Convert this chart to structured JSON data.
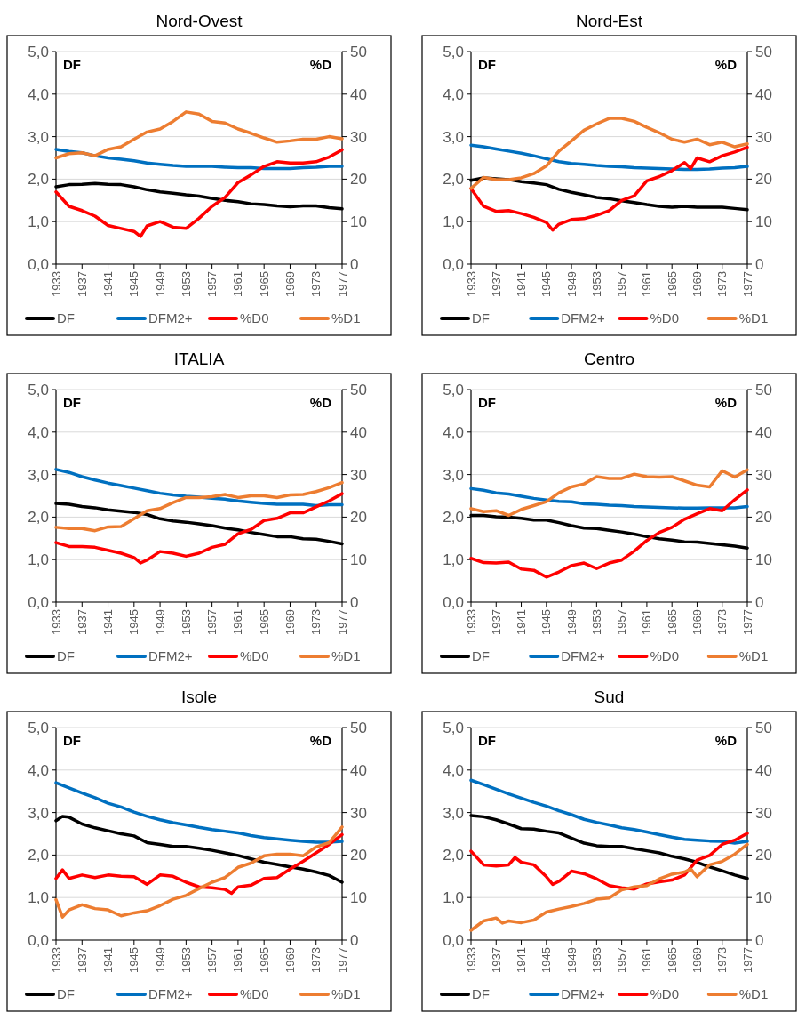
{
  "chart_data": [
    {
      "type": "line",
      "title": "Nord-Ovest",
      "ylabel": "DF",
      "y2label": "%D",
      "x": [
        1933,
        1935,
        1937,
        1939,
        1941,
        1943,
        1945,
        1947,
        1949,
        1951,
        1953,
        1955,
        1957,
        1959,
        1961,
        1963,
        1965,
        1967,
        1969,
        1971,
        1973,
        1975,
        1977
      ],
      "xlim": [
        1933,
        1977
      ],
      "xticks": [
        1933,
        1937,
        1941,
        1945,
        1949,
        1953,
        1957,
        1961,
        1965,
        1969,
        1973,
        1977
      ],
      "ylim": [
        0,
        5
      ],
      "yticks": [
        {
          "value": 0,
          "label": "0,0"
        },
        {
          "value": 1,
          "label": "1,0"
        },
        {
          "value": 2,
          "label": "2,0"
        },
        {
          "value": 3,
          "label": "3,0"
        },
        {
          "value": 4,
          "label": "4,0"
        },
        {
          "value": 5,
          "label": "5,0"
        }
      ],
      "y2lim": [
        0,
        50
      ],
      "y2ticks": [
        0,
        10,
        20,
        30,
        40,
        50
      ],
      "grid": "y",
      "legend": "bottom",
      "series": [
        {
          "name": "DF",
          "color": "#000000",
          "values": [
            1.82,
            1.87,
            1.88,
            1.9,
            1.88,
            1.87,
            1.82,
            1.75,
            1.7,
            1.67,
            1.63,
            1.6,
            1.55,
            1.5,
            1.47,
            1.42,
            1.4,
            1.37,
            1.35,
            1.37,
            1.37,
            1.33,
            1.3
          ]
        },
        {
          "name": "DFM2+",
          "color": "#0070c0",
          "values": [
            2.7,
            2.65,
            2.62,
            2.55,
            2.5,
            2.47,
            2.43,
            2.38,
            2.35,
            2.32,
            2.3,
            2.3,
            2.3,
            2.28,
            2.27,
            2.27,
            2.25,
            2.25,
            2.25,
            2.27,
            2.28,
            2.3,
            2.3
          ]
        },
        {
          "name": "%D0",
          "color": "#ff0000",
          "axis": "y2",
          "x": [
            1933,
            1935,
            1937,
            1939,
            1941,
            1943,
            1945,
            1946,
            1947,
            1949,
            1951,
            1953,
            1955,
            1957,
            1959,
            1961,
            1963,
            1965,
            1967,
            1969,
            1971,
            1973,
            1975,
            1977
          ],
          "values": [
            17,
            13.6,
            12.6,
            11.3,
            9.1,
            8.4,
            7.7,
            6.5,
            9,
            10,
            8.7,
            8.4,
            10.8,
            13.6,
            15.7,
            19.2,
            21,
            23,
            24.1,
            23.8,
            23.8,
            24.1,
            25.2,
            26.9
          ]
        },
        {
          "name": "%D1",
          "color": "#ed7d31",
          "axis": "y2",
          "values": [
            25,
            26,
            26.2,
            25.5,
            27,
            27.6,
            29.4,
            31.1,
            31.8,
            33.6,
            35.8,
            35.3,
            33.6,
            33.2,
            31.8,
            30.8,
            29.7,
            28.7,
            29,
            29.4,
            29.4,
            30,
            29.5
          ]
        }
      ]
    },
    {
      "type": "line",
      "title": "Nord-Est",
      "ylabel": "DF",
      "y2label": "%D",
      "x": [
        1933,
        1935,
        1937,
        1939,
        1941,
        1943,
        1945,
        1947,
        1949,
        1951,
        1953,
        1955,
        1957,
        1959,
        1961,
        1963,
        1965,
        1967,
        1969,
        1971,
        1973,
        1975,
        1977
      ],
      "xlim": [
        1933,
        1977
      ],
      "xticks": [
        1933,
        1937,
        1941,
        1945,
        1949,
        1953,
        1957,
        1961,
        1965,
        1969,
        1973,
        1977
      ],
      "ylim": [
        0,
        5
      ],
      "yticks": [
        {
          "value": 0,
          "label": "0,0"
        },
        {
          "value": 1,
          "label": "1,0"
        },
        {
          "value": 2,
          "label": "2,0"
        },
        {
          "value": 3,
          "label": "3,0"
        },
        {
          "value": 4,
          "label": "4,0"
        },
        {
          "value": 5,
          "label": "5,0"
        }
      ],
      "y2lim": [
        0,
        50
      ],
      "y2ticks": [
        0,
        10,
        20,
        30,
        40,
        50
      ],
      "grid": "y",
      "legend": "bottom",
      "series": [
        {
          "name": "DF",
          "color": "#000000",
          "values": [
            1.97,
            2.03,
            2.01,
            1.99,
            1.94,
            1.91,
            1.87,
            1.76,
            1.69,
            1.63,
            1.57,
            1.54,
            1.49,
            1.45,
            1.4,
            1.36,
            1.34,
            1.36,
            1.34,
            1.34,
            1.34,
            1.31,
            1.28
          ]
        },
        {
          "name": "DFM2+",
          "color": "#0070c0",
          "values": [
            2.8,
            2.76,
            2.71,
            2.66,
            2.61,
            2.55,
            2.48,
            2.41,
            2.37,
            2.35,
            2.32,
            2.3,
            2.29,
            2.27,
            2.26,
            2.25,
            2.24,
            2.23,
            2.23,
            2.24,
            2.26,
            2.27,
            2.3
          ]
        },
        {
          "name": "%D0",
          "color": "#ff0000",
          "axis": "y2",
          "x": [
            1933,
            1935,
            1937,
            1939,
            1941,
            1943,
            1945,
            1946,
            1947,
            1949,
            1951,
            1953,
            1955,
            1957,
            1959,
            1961,
            1963,
            1965,
            1967,
            1968,
            1969,
            1971,
            1973,
            1975,
            1977
          ],
          "values": [
            17.8,
            13.6,
            12.4,
            12.6,
            11.9,
            11,
            9.8,
            8,
            9.4,
            10.5,
            10.7,
            11.5,
            12.6,
            15,
            16.1,
            19.6,
            20.6,
            22,
            23.9,
            22.5,
            25,
            24.1,
            25.5,
            26.4,
            27.5
          ]
        },
        {
          "name": "%D1",
          "color": "#ed7d31",
          "axis": "y2",
          "values": [
            17.8,
            20.4,
            19.9,
            19.9,
            20.3,
            21.3,
            23.1,
            26.6,
            29,
            31.5,
            33,
            34.3,
            34.3,
            33.6,
            32.2,
            30.9,
            29.4,
            28.7,
            29.4,
            28.1,
            28.7,
            27.6,
            28.3
          ]
        }
      ]
    },
    {
      "type": "line",
      "title": "ITALIA",
      "ylabel": "DF",
      "y2label": "%D",
      "x": [
        1933,
        1935,
        1937,
        1939,
        1941,
        1943,
        1945,
        1947,
        1949,
        1951,
        1953,
        1955,
        1957,
        1959,
        1961,
        1963,
        1965,
        1967,
        1969,
        1971,
        1973,
        1975,
        1977
      ],
      "xlim": [
        1933,
        1977
      ],
      "xticks": [
        1933,
        1937,
        1941,
        1945,
        1949,
        1953,
        1957,
        1961,
        1965,
        1969,
        1973,
        1977
      ],
      "ylim": [
        0,
        5
      ],
      "yticks": [
        {
          "value": 0,
          "label": "0,0"
        },
        {
          "value": 1,
          "label": "1,0"
        },
        {
          "value": 2,
          "label": "2,0"
        },
        {
          "value": 3,
          "label": "3,0"
        },
        {
          "value": 4,
          "label": "4,0"
        },
        {
          "value": 5,
          "label": "5,0"
        }
      ],
      "y2lim": [
        0,
        50
      ],
      "y2ticks": [
        0,
        10,
        20,
        30,
        40,
        50
      ],
      "grid": "y",
      "legend": "bottom",
      "series": [
        {
          "name": "DF",
          "color": "#000000",
          "values": [
            2.32,
            2.3,
            2.25,
            2.22,
            2.17,
            2.14,
            2.11,
            2.06,
            1.96,
            1.91,
            1.88,
            1.84,
            1.8,
            1.74,
            1.7,
            1.64,
            1.59,
            1.54,
            1.54,
            1.49,
            1.48,
            1.43,
            1.37
          ]
        },
        {
          "name": "DFM2+",
          "color": "#0070c0",
          "values": [
            3.12,
            3.05,
            2.95,
            2.87,
            2.8,
            2.74,
            2.68,
            2.62,
            2.56,
            2.52,
            2.49,
            2.47,
            2.44,
            2.42,
            2.38,
            2.35,
            2.32,
            2.3,
            2.3,
            2.3,
            2.27,
            2.29,
            2.29
          ]
        },
        {
          "name": "%D0",
          "color": "#ff0000",
          "axis": "y2",
          "x": [
            1933,
            1935,
            1937,
            1939,
            1941,
            1943,
            1945,
            1946,
            1947,
            1949,
            1951,
            1953,
            1955,
            1957,
            1959,
            1961,
            1963,
            1965,
            1967,
            1969,
            1971,
            1973,
            1975,
            1977
          ],
          "values": [
            14,
            13.1,
            13.1,
            12.9,
            12.2,
            11.5,
            10.5,
            9.2,
            9.9,
            11.9,
            11.5,
            10.8,
            11.5,
            12.9,
            13.6,
            16.1,
            17.1,
            19.2,
            19.7,
            21,
            21,
            22.4,
            23.8,
            25.5
          ]
        },
        {
          "name": "%D1",
          "color": "#ed7d31",
          "axis": "y2",
          "values": [
            17.6,
            17.3,
            17.3,
            16.8,
            17.7,
            17.8,
            19.6,
            21.5,
            22,
            23.4,
            24.6,
            24.6,
            24.8,
            25.3,
            24.6,
            25,
            25,
            24.6,
            25.2,
            25.3,
            26,
            26.9,
            28.1
          ]
        }
      ]
    },
    {
      "type": "line",
      "title": "Centro",
      "ylabel": "DF",
      "y2label": "%D",
      "x": [
        1933,
        1935,
        1937,
        1939,
        1941,
        1943,
        1945,
        1947,
        1949,
        1951,
        1953,
        1955,
        1957,
        1959,
        1961,
        1963,
        1965,
        1967,
        1969,
        1971,
        1973,
        1975,
        1977
      ],
      "xlim": [
        1933,
        1977
      ],
      "xticks": [
        1933,
        1937,
        1941,
        1945,
        1949,
        1953,
        1957,
        1961,
        1965,
        1969,
        1973,
        1977
      ],
      "ylim": [
        0,
        5
      ],
      "yticks": [
        {
          "value": 0,
          "label": "0,0"
        },
        {
          "value": 1,
          "label": "1,0"
        },
        {
          "value": 2,
          "label": "2,0"
        },
        {
          "value": 3,
          "label": "3,0"
        },
        {
          "value": 4,
          "label": "4,0"
        },
        {
          "value": 5,
          "label": "5,0"
        }
      ],
      "y2lim": [
        0,
        50
      ],
      "y2ticks": [
        0,
        10,
        20,
        30,
        40,
        50
      ],
      "grid": "y",
      "legend": "bottom",
      "series": [
        {
          "name": "DF",
          "color": "#000000",
          "values": [
            2.04,
            2.04,
            2.01,
            2,
            1.97,
            1.93,
            1.93,
            1.87,
            1.8,
            1.74,
            1.73,
            1.69,
            1.65,
            1.6,
            1.54,
            1.49,
            1.46,
            1.42,
            1.41,
            1.38,
            1.35,
            1.32,
            1.27
          ]
        },
        {
          "name": "DFM2+",
          "color": "#0070c0",
          "values": [
            2.67,
            2.63,
            2.57,
            2.54,
            2.49,
            2.44,
            2.4,
            2.37,
            2.36,
            2.31,
            2.3,
            2.28,
            2.27,
            2.25,
            2.24,
            2.23,
            2.22,
            2.21,
            2.21,
            2.22,
            2.22,
            2.22,
            2.25
          ]
        },
        {
          "name": "%D0",
          "color": "#ff0000",
          "axis": "y2",
          "values": [
            10.3,
            9.3,
            9.2,
            9.4,
            7.8,
            7.5,
            5.9,
            7.1,
            8.6,
            9.2,
            7.9,
            9.2,
            9.9,
            12,
            14.5,
            16.4,
            17.6,
            19.5,
            20.8,
            22,
            21.5,
            24.1,
            26.4
          ]
        },
        {
          "name": "%D1",
          "color": "#ed7d31",
          "axis": "y2",
          "values": [
            22,
            21.3,
            21.5,
            20.4,
            21.8,
            22.7,
            23.6,
            25.7,
            27.1,
            27.8,
            29.5,
            29.1,
            29.1,
            30.1,
            29.5,
            29.4,
            29.5,
            28.5,
            27.5,
            27.1,
            30.9,
            29.4,
            31.1
          ]
        }
      ]
    },
    {
      "type": "line",
      "title": "Isole",
      "ylabel": "DF",
      "y2label": "%D",
      "x": [
        1933,
        1935,
        1937,
        1939,
        1941,
        1943,
        1945,
        1947,
        1949,
        1951,
        1953,
        1955,
        1957,
        1959,
        1961,
        1963,
        1965,
        1967,
        1969,
        1971,
        1973,
        1975,
        1977
      ],
      "xlim": [
        1933,
        1977
      ],
      "xticks": [
        1933,
        1937,
        1941,
        1945,
        1949,
        1953,
        1957,
        1961,
        1965,
        1969,
        1973,
        1977
      ],
      "ylim": [
        0,
        5
      ],
      "yticks": [
        {
          "value": 0,
          "label": "0,0"
        },
        {
          "value": 1,
          "label": "1,0"
        },
        {
          "value": 2,
          "label": "2,0"
        },
        {
          "value": 3,
          "label": "3,0"
        },
        {
          "value": 4,
          "label": "4,0"
        },
        {
          "value": 5,
          "label": "5,0"
        }
      ],
      "y2lim": [
        0,
        50
      ],
      "y2ticks": [
        0,
        10,
        20,
        30,
        40,
        50
      ],
      "grid": "y",
      "legend": "bottom",
      "series": [
        {
          "name": "DF",
          "color": "#000000",
          "x": [
            1933,
            1934,
            1935,
            1937,
            1939,
            1941,
            1943,
            1945,
            1947,
            1949,
            1951,
            1953,
            1955,
            1957,
            1959,
            1961,
            1963,
            1965,
            1967,
            1969,
            1971,
            1973,
            1975,
            1977
          ],
          "values": [
            2.81,
            2.91,
            2.89,
            2.73,
            2.64,
            2.57,
            2.5,
            2.45,
            2.29,
            2.25,
            2.2,
            2.2,
            2.16,
            2.11,
            2.05,
            1.99,
            1.91,
            1.83,
            1.78,
            1.72,
            1.67,
            1.6,
            1.52,
            1.36
          ]
        },
        {
          "name": "DFM2+",
          "color": "#0070c0",
          "values": [
            3.7,
            3.58,
            3.46,
            3.35,
            3.22,
            3.13,
            3.01,
            2.91,
            2.83,
            2.76,
            2.71,
            2.65,
            2.6,
            2.56,
            2.52,
            2.46,
            2.41,
            2.38,
            2.35,
            2.32,
            2.3,
            2.3,
            2.32
          ]
        },
        {
          "name": "%D0",
          "color": "#ff0000",
          "axis": "y2",
          "x": [
            1933,
            1934,
            1935,
            1937,
            1939,
            1941,
            1943,
            1945,
            1947,
            1949,
            1951,
            1953,
            1955,
            1957,
            1959,
            1960,
            1961,
            1963,
            1965,
            1967,
            1969,
            1971,
            1973,
            1975,
            1977
          ],
          "values": [
            14.5,
            16.5,
            14.5,
            15.3,
            14.7,
            15.3,
            15,
            14.9,
            13.1,
            15.3,
            15,
            13.6,
            12.5,
            12.3,
            11.9,
            11,
            12.5,
            12.9,
            14.5,
            14.7,
            16.7,
            18.5,
            20.5,
            22.5,
            24.8
          ]
        },
        {
          "name": "%D1",
          "color": "#ed7d31",
          "axis": "y2",
          "x": [
            1933,
            1934,
            1935,
            1937,
            1939,
            1941,
            1943,
            1945,
            1947,
            1949,
            1951,
            1953,
            1955,
            1957,
            1959,
            1961,
            1963,
            1965,
            1967,
            1969,
            1971,
            1973,
            1975,
            1977
          ],
          "values": [
            9.5,
            5.4,
            7.1,
            8.3,
            7.4,
            7.1,
            5.7,
            6.4,
            6.9,
            8.1,
            9.6,
            10.5,
            12.1,
            13.6,
            14.7,
            17.1,
            18.1,
            19.8,
            20.2,
            20.2,
            19.8,
            21.9,
            22.9,
            26.6
          ]
        }
      ]
    },
    {
      "type": "line",
      "title": "Sud",
      "ylabel": "DF",
      "y2label": "%D",
      "x": [
        1933,
        1935,
        1937,
        1939,
        1941,
        1943,
        1945,
        1947,
        1949,
        1951,
        1953,
        1955,
        1957,
        1959,
        1961,
        1963,
        1965,
        1967,
        1969,
        1971,
        1973,
        1975,
        1977
      ],
      "xlim": [
        1933,
        1977
      ],
      "xticks": [
        1933,
        1937,
        1941,
        1945,
        1949,
        1953,
        1957,
        1961,
        1965,
        1969,
        1973,
        1977
      ],
      "ylim": [
        0,
        5
      ],
      "yticks": [
        {
          "value": 0,
          "label": "0,0"
        },
        {
          "value": 1,
          "label": "1,0"
        },
        {
          "value": 2,
          "label": "2,0"
        },
        {
          "value": 3,
          "label": "3,0"
        },
        {
          "value": 4,
          "label": "4,0"
        },
        {
          "value": 5,
          "label": "5,0"
        }
      ],
      "y2lim": [
        0,
        50
      ],
      "y2ticks": [
        0,
        10,
        20,
        30,
        40,
        50
      ],
      "grid": "y",
      "legend": "bottom",
      "series": [
        {
          "name": "DF",
          "color": "#000000",
          "values": [
            2.93,
            2.9,
            2.83,
            2.73,
            2.62,
            2.61,
            2.56,
            2.52,
            2.4,
            2.28,
            2.22,
            2.2,
            2.2,
            2.15,
            2.1,
            2.05,
            1.97,
            1.91,
            1.83,
            1.72,
            1.63,
            1.53,
            1.45
          ]
        },
        {
          "name": "DFM2+",
          "color": "#0070c0",
          "values": [
            3.76,
            3.66,
            3.55,
            3.44,
            3.34,
            3.24,
            3.15,
            3.04,
            2.95,
            2.84,
            2.77,
            2.71,
            2.64,
            2.6,
            2.54,
            2.48,
            2.42,
            2.37,
            2.35,
            2.33,
            2.32,
            2.28,
            2.32
          ]
        },
        {
          "name": "%D0",
          "color": "#ff0000",
          "axis": "y2",
          "x": [
            1933,
            1935,
            1937,
            1939,
            1940,
            1941,
            1943,
            1945,
            1946,
            1947,
            1949,
            1951,
            1953,
            1955,
            1957,
            1959,
            1961,
            1963,
            1965,
            1967,
            1969,
            1971,
            1973,
            1975,
            1977
          ],
          "values": [
            20.9,
            17.7,
            17.4,
            17.7,
            19.4,
            18.3,
            17.7,
            14.9,
            13.1,
            13.8,
            16.2,
            15.6,
            14.4,
            12.8,
            12.3,
            12,
            13.2,
            13.7,
            14.1,
            15.3,
            18.8,
            19.9,
            22.5,
            23.5,
            25.1
          ]
        },
        {
          "name": "%D1",
          "color": "#ed7d31",
          "axis": "y2",
          "x": [
            1933,
            1935,
            1937,
            1938,
            1939,
            1941,
            1943,
            1945,
            1947,
            1949,
            1951,
            1953,
            1955,
            1957,
            1959,
            1961,
            1963,
            1965,
            1967,
            1968,
            1969,
            1971,
            1973,
            1975,
            1977
          ],
          "values": [
            2.3,
            4.5,
            5.2,
            4,
            4.5,
            4.1,
            4.7,
            6.6,
            7.3,
            7.9,
            8.6,
            9.6,
            9.9,
            11.8,
            12.5,
            12.8,
            14.4,
            15.5,
            16,
            16.7,
            14.9,
            17.7,
            18.5,
            20.2,
            22.5
          ]
        }
      ]
    }
  ]
}
